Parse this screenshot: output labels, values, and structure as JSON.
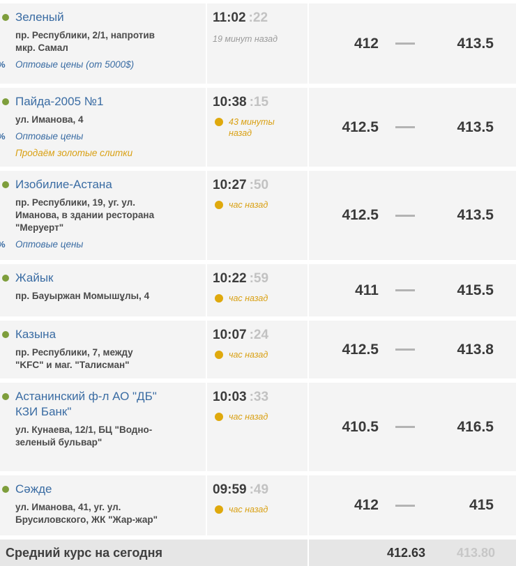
{
  "colors": {
    "link_blue": "#3a6ca3",
    "highlight_orange": "#d9a013",
    "status_green": "#7e9e3c",
    "row_bg": "#f4f4f4",
    "summary_bg": "#e6e6e6"
  },
  "icons": {
    "wholesale": "%"
  },
  "rows": [
    {
      "name": "Зеленый",
      "address": "пр. Республики, 2/1, напротив\nмкр. Самал",
      "wholesale_tag": "Оптовые цены (от 5000$)",
      "time": "11:02",
      "seconds": ":22",
      "ago": "19 минут назад",
      "buy": "412",
      "sell": "413.5"
    },
    {
      "name": "Пайда-2005 №1",
      "address": "ул. Иманова, 4",
      "wholesale_tag": "Оптовые цены",
      "gold_tag": "Продаём золотые слитки",
      "time": "10:38",
      "seconds": ":15",
      "ago": "43 минуты\nназад",
      "buy": "412.5",
      "sell": "413.5"
    },
    {
      "name": "Изобилие-Астана",
      "address": "пр. Республики, 19, уг. ул.\nИманова, в здании ресторана\n\"Меруерт\"",
      "wholesale_tag": "Оптовые цены",
      "time": "10:27",
      "seconds": ":50",
      "ago": "час назад",
      "buy": "412.5",
      "sell": "413.5"
    },
    {
      "name": "Жайык",
      "address": "пр. Бауыржан Момышұлы, 4",
      "time": "10:22",
      "seconds": ":59",
      "ago": "час назад",
      "buy": "411",
      "sell": "415.5"
    },
    {
      "name": "Казына",
      "address": "пр. Республики, 7, между\n\"KFC\" и маг. \"Талисман\"",
      "time": "10:07",
      "seconds": ":24",
      "ago": "час назад",
      "buy": "412.5",
      "sell": "413.8"
    },
    {
      "name": "Астанинский ф-л АО \"ДБ\"\nКЗИ Банк\"",
      "address": "ул. Кунаева, 12/1, БЦ \"Водно-\nзеленый бульвар\"",
      "time": "10:03",
      "seconds": ":33",
      "ago": "час назад",
      "buy": "410.5",
      "sell": "416.5"
    },
    {
      "name": "Сәжде",
      "address": "ул. Иманова, 41, уг. ул.\nБрусиловского, ЖК \"Жар-жар\"",
      "time": "09:59",
      "seconds": ":49",
      "ago": "час назад",
      "buy": "412",
      "sell": "415"
    }
  ],
  "summary": {
    "label": "Средний курс на сегодня",
    "avg_buy": "412.63",
    "avg_sell": "413.80"
  }
}
